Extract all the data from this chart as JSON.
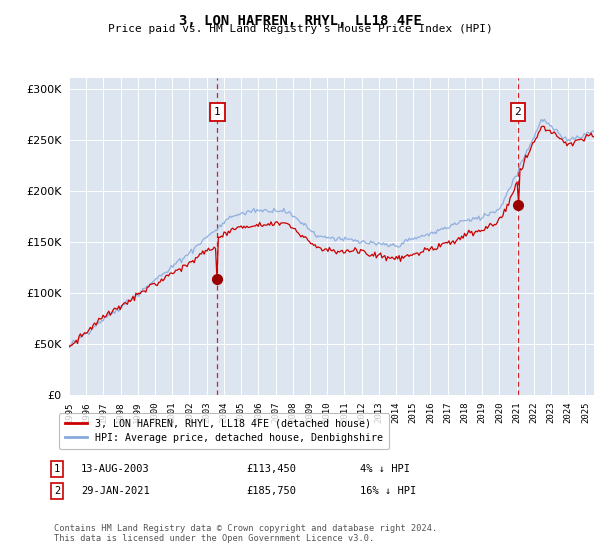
{
  "title": "3, LON HAFREN, RHYL, LL18 4FE",
  "subtitle": "Price paid vs. HM Land Registry's House Price Index (HPI)",
  "ylabel_ticks": [
    0,
    50000,
    100000,
    150000,
    200000,
    250000,
    300000
  ],
  "ylabel_labels": [
    "£0",
    "£50K",
    "£100K",
    "£150K",
    "£200K",
    "£250K",
    "£300K"
  ],
  "ylim": [
    0,
    310000
  ],
  "xlim_start": 1995.0,
  "xlim_end": 2025.5,
  "background_color": "#dde5f0",
  "grid_color": "#ffffff",
  "sale1_date": 2003.617,
  "sale1_price": 113450,
  "sale1_label": "1",
  "sale2_date": 2021.08,
  "sale2_price": 185750,
  "sale2_label": "2",
  "legend_line1": "3, LON HAFREN, RHYL, LL18 4FE (detached house)",
  "legend_line2": "HPI: Average price, detached house, Denbighshire",
  "table_row1": [
    "1",
    "13-AUG-2003",
    "£113,450",
    "4% ↓ HPI"
  ],
  "table_row2": [
    "2",
    "29-JAN-2021",
    "£185,750",
    "16% ↓ HPI"
  ],
  "footer": "Contains HM Land Registry data © Crown copyright and database right 2024.\nThis data is licensed under the Open Government Licence v3.0.",
  "line_red_color": "#cc0000",
  "line_blue_color": "#88aadd",
  "marker_color": "#990000",
  "dashed_color": "#cc0000"
}
